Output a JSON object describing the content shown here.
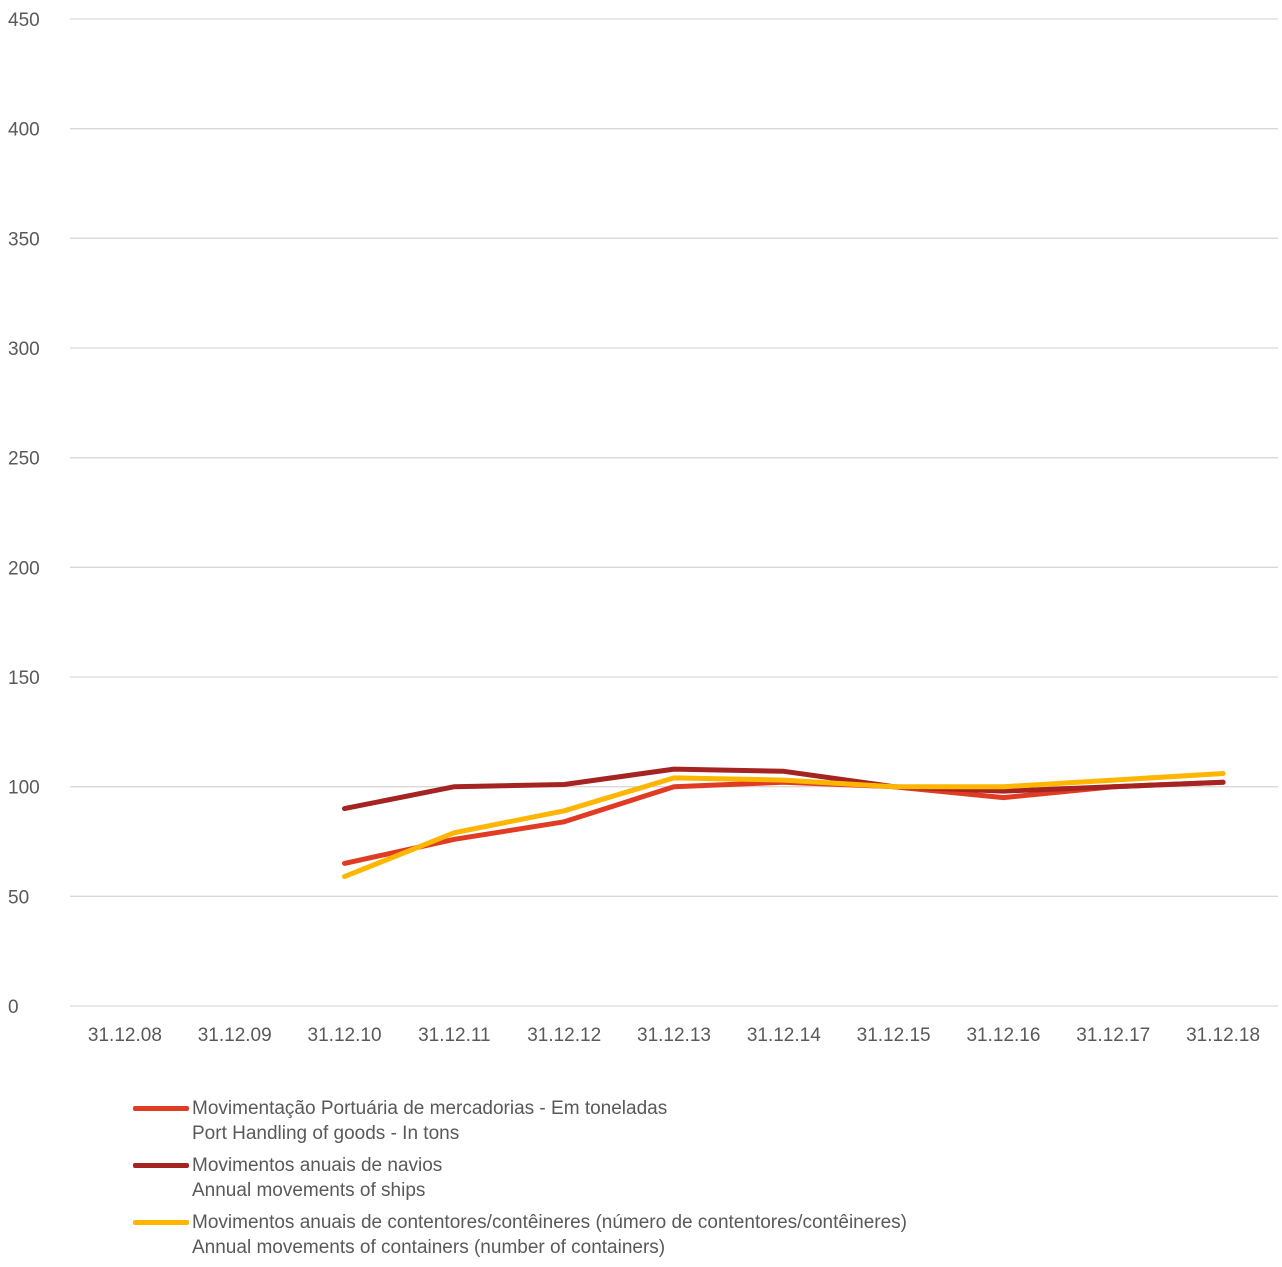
{
  "chart_data": {
    "type": "line",
    "title": "",
    "xlabel": "",
    "ylabel": "",
    "ylim": [
      0,
      450
    ],
    "yticks": [
      "0",
      "50",
      "100",
      "150",
      "200",
      "250",
      "300",
      "350",
      "400",
      "450"
    ],
    "grid": true,
    "legend_position": "bottom",
    "categories": [
      "31.12.08",
      "31.12.09",
      "31.12.10",
      "31.12.11",
      "31.12.12",
      "31.12.13",
      "31.12.14",
      "31.12.15",
      "31.12.16",
      "31.12.17",
      "31.12.18"
    ],
    "series": [
      {
        "name": "Movimentação Portuária de mercadorias - Em toneladas",
        "name_en": "Port Handling of goods - In tons",
        "color": "#e03c24",
        "values": [
          null,
          null,
          65,
          76,
          84,
          100,
          102,
          100,
          95,
          100,
          102
        ]
      },
      {
        "name": "Movimentos anuais de navios",
        "name_en": "Annual movements of ships",
        "color": "#a52422",
        "values": [
          null,
          null,
          90,
          100,
          101,
          108,
          107,
          100,
          98,
          100,
          102
        ]
      },
      {
        "name": "Movimentos anuais de contentores/contêineres (número de contentores/contêineres)",
        "name_en": "Annual movements of containers (number of containers)",
        "color": "#ffb600",
        "values": [
          null,
          null,
          59,
          79,
          89,
          104,
          103,
          100,
          100,
          103,
          106
        ]
      }
    ]
  }
}
